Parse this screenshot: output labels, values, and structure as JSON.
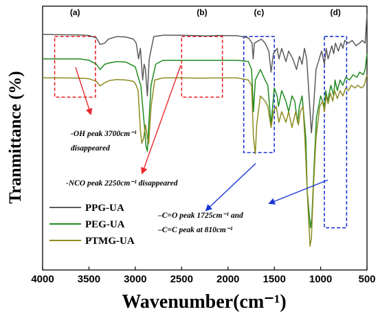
{
  "chart_data": {
    "type": "line",
    "title": "",
    "xlabel": "Wavenumber(cm⁻¹)",
    "ylabel": "Tranmittance (%)",
    "xlim": [
      4000,
      500
    ],
    "ylim": [
      0,
      1
    ],
    "xticks": [
      "4000",
      "3500",
      "3000",
      "2500",
      "2000",
      "1500",
      "1000",
      "500"
    ],
    "legend_position": "lower-left",
    "grid": false,
    "colors": {
      "PPG-UA": "#5a5a5a",
      "PEG-UA": "#1f8a1f",
      "PTMG-UA": "#8c8a1f",
      "box_red": "#e8262b",
      "box_blue": "#1a35d6",
      "arrow_red": "#e8262b",
      "arrow_blue": "#1a35d6"
    },
    "series": [
      {
        "name": "PPG-UA",
        "color": "#5a5a5a",
        "points": [
          [
            4000,
            0.893
          ],
          [
            3800,
            0.892
          ],
          [
            3600,
            0.891
          ],
          [
            3500,
            0.889
          ],
          [
            3420,
            0.88
          ],
          [
            3380,
            0.855
          ],
          [
            3330,
            0.86
          ],
          [
            3290,
            0.875
          ],
          [
            3200,
            0.885
          ],
          [
            3100,
            0.883
          ],
          [
            3020,
            0.875
          ],
          [
            2990,
            0.86
          ],
          [
            2965,
            0.8
          ],
          [
            2945,
            0.84
          ],
          [
            2920,
            0.72
          ],
          [
            2905,
            0.78
          ],
          [
            2890,
            0.76
          ],
          [
            2870,
            0.66
          ],
          [
            2850,
            0.8
          ],
          [
            2800,
            0.885
          ],
          [
            2700,
            0.89
          ],
          [
            2500,
            0.89
          ],
          [
            2300,
            0.888
          ],
          [
            2250,
            0.887
          ],
          [
            2100,
            0.889
          ],
          [
            1900,
            0.888
          ],
          [
            1780,
            0.88
          ],
          [
            1740,
            0.86
          ],
          [
            1728,
            0.8
          ],
          [
            1715,
            0.86
          ],
          [
            1640,
            0.875
          ],
          [
            1600,
            0.86
          ],
          [
            1560,
            0.83
          ],
          [
            1535,
            0.75
          ],
          [
            1510,
            0.82
          ],
          [
            1470,
            0.84
          ],
          [
            1450,
            0.8
          ],
          [
            1420,
            0.84
          ],
          [
            1375,
            0.79
          ],
          [
            1345,
            0.83
          ],
          [
            1300,
            0.8
          ],
          [
            1260,
            0.76
          ],
          [
            1230,
            0.81
          ],
          [
            1200,
            0.78
          ],
          [
            1175,
            0.84
          ],
          [
            1150,
            0.8
          ],
          [
            1100,
            0.52
          ],
          [
            1080,
            0.6
          ],
          [
            1050,
            0.76
          ],
          [
            1015,
            0.8
          ],
          [
            990,
            0.83
          ],
          [
            960,
            0.78
          ],
          [
            940,
            0.84
          ],
          [
            920,
            0.8
          ],
          [
            880,
            0.85
          ],
          [
            860,
            0.82
          ],
          [
            840,
            0.86
          ],
          [
            810,
            0.83
          ],
          [
            780,
            0.86
          ],
          [
            760,
            0.84
          ],
          [
            740,
            0.87
          ],
          [
            700,
            0.86
          ],
          [
            660,
            0.87
          ],
          [
            620,
            0.85
          ],
          [
            580,
            0.86
          ],
          [
            550,
            0.87
          ],
          [
            520,
            0.86
          ],
          [
            500,
            0.97
          ]
        ]
      },
      {
        "name": "PEG-UA",
        "color": "#1f8a1f",
        "points": [
          [
            4000,
            0.8
          ],
          [
            3800,
            0.8
          ],
          [
            3600,
            0.8
          ],
          [
            3500,
            0.795
          ],
          [
            3420,
            0.78
          ],
          [
            3380,
            0.76
          ],
          [
            3330,
            0.78
          ],
          [
            3280,
            0.785
          ],
          [
            3200,
            0.79
          ],
          [
            3100,
            0.788
          ],
          [
            3000,
            0.77
          ],
          [
            2960,
            0.72
          ],
          [
            2940,
            0.7
          ],
          [
            2920,
            0.62
          ],
          [
            2900,
            0.54
          ],
          [
            2885,
            0.47
          ],
          [
            2870,
            0.45
          ],
          [
            2855,
            0.55
          ],
          [
            2830,
            0.7
          ],
          [
            2780,
            0.78
          ],
          [
            2700,
            0.795
          ],
          [
            2500,
            0.795
          ],
          [
            2300,
            0.795
          ],
          [
            2100,
            0.795
          ],
          [
            1900,
            0.795
          ],
          [
            1780,
            0.79
          ],
          [
            1745,
            0.76
          ],
          [
            1725,
            0.6
          ],
          [
            1705,
            0.72
          ],
          [
            1650,
            0.76
          ],
          [
            1600,
            0.72
          ],
          [
            1570,
            0.7
          ],
          [
            1535,
            0.55
          ],
          [
            1500,
            0.69
          ],
          [
            1470,
            0.66
          ],
          [
            1455,
            0.62
          ],
          [
            1420,
            0.68
          ],
          [
            1375,
            0.64
          ],
          [
            1345,
            0.6
          ],
          [
            1310,
            0.66
          ],
          [
            1280,
            0.64
          ],
          [
            1250,
            0.56
          ],
          [
            1230,
            0.62
          ],
          [
            1200,
            0.66
          ],
          [
            1160,
            0.5
          ],
          [
            1145,
            0.3
          ],
          [
            1110,
            0.16
          ],
          [
            1095,
            0.2
          ],
          [
            1070,
            0.4
          ],
          [
            1045,
            0.58
          ],
          [
            1000,
            0.66
          ],
          [
            960,
            0.62
          ],
          [
            945,
            0.68
          ],
          [
            925,
            0.64
          ],
          [
            890,
            0.7
          ],
          [
            860,
            0.66
          ],
          [
            845,
            0.72
          ],
          [
            820,
            0.68
          ],
          [
            790,
            0.72
          ],
          [
            760,
            0.7
          ],
          [
            730,
            0.73
          ],
          [
            690,
            0.72
          ],
          [
            650,
            0.74
          ],
          [
            610,
            0.73
          ],
          [
            580,
            0.75
          ],
          [
            540,
            0.74
          ],
          [
            520,
            0.76
          ],
          [
            500,
            0.82
          ]
        ]
      },
      {
        "name": "PTMG-UA",
        "color": "#8c8a1f",
        "points": [
          [
            4000,
            0.728
          ],
          [
            3800,
            0.728
          ],
          [
            3600,
            0.727
          ],
          [
            3500,
            0.725
          ],
          [
            3420,
            0.715
          ],
          [
            3380,
            0.698
          ],
          [
            3330,
            0.71
          ],
          [
            3280,
            0.718
          ],
          [
            3200,
            0.722
          ],
          [
            3100,
            0.72
          ],
          [
            3020,
            0.715
          ],
          [
            2990,
            0.7
          ],
          [
            2970,
            0.68
          ],
          [
            2945,
            0.53
          ],
          [
            2930,
            0.48
          ],
          [
            2910,
            0.5
          ],
          [
            2890,
            0.55
          ],
          [
            2870,
            0.5
          ],
          [
            2855,
            0.48
          ],
          [
            2830,
            0.62
          ],
          [
            2790,
            0.72
          ],
          [
            2700,
            0.728
          ],
          [
            2500,
            0.728
          ],
          [
            2300,
            0.727
          ],
          [
            2100,
            0.728
          ],
          [
            1900,
            0.728
          ],
          [
            1780,
            0.72
          ],
          [
            1745,
            0.7
          ],
          [
            1725,
            0.5
          ],
          [
            1705,
            0.44
          ],
          [
            1690,
            0.55
          ],
          [
            1650,
            0.66
          ],
          [
            1600,
            0.64
          ],
          [
            1570,
            0.62
          ],
          [
            1535,
            0.54
          ],
          [
            1510,
            0.6
          ],
          [
            1480,
            0.62
          ],
          [
            1450,
            0.56
          ],
          [
            1420,
            0.6
          ],
          [
            1375,
            0.56
          ],
          [
            1345,
            0.6
          ],
          [
            1310,
            0.54
          ],
          [
            1270,
            0.6
          ],
          [
            1240,
            0.55
          ],
          [
            1220,
            0.6
          ],
          [
            1190,
            0.62
          ],
          [
            1170,
            0.5
          ],
          [
            1140,
            0.26
          ],
          [
            1115,
            0.09
          ],
          [
            1100,
            0.12
          ],
          [
            1080,
            0.3
          ],
          [
            1050,
            0.5
          ],
          [
            1010,
            0.62
          ],
          [
            980,
            0.64
          ],
          [
            960,
            0.6
          ],
          [
            940,
            0.66
          ],
          [
            920,
            0.63
          ],
          [
            895,
            0.67
          ],
          [
            870,
            0.64
          ],
          [
            850,
            0.68
          ],
          [
            820,
            0.65
          ],
          [
            790,
            0.68
          ],
          [
            760,
            0.66
          ],
          [
            730,
            0.69
          ],
          [
            700,
            0.68
          ],
          [
            670,
            0.7
          ],
          [
            630,
            0.69
          ],
          [
            600,
            0.7
          ],
          [
            560,
            0.69
          ],
          [
            530,
            0.7
          ],
          [
            500,
            0.74
          ]
        ]
      }
    ],
    "regions": [
      {
        "label": "(a)",
        "x_from": 3870,
        "x_to": 3430,
        "y_from": 0.885,
        "y_to": 0.655,
        "color": "#e8262b"
      },
      {
        "label": "(b)",
        "x_from": 2500,
        "x_to": 2060,
        "y_from": 0.885,
        "y_to": 0.655,
        "color": "#e8262b"
      },
      {
        "label": "(c)",
        "x_from": 1830,
        "x_to": 1500,
        "y_from": 0.885,
        "y_to": 0.445,
        "color": "#1a35d6"
      },
      {
        "label": "(d)",
        "x_from": 960,
        "x_to": 720,
        "y_from": 0.885,
        "y_to": 0.16,
        "color": "#1a35d6"
      }
    ],
    "annotations": [
      {
        "line1": "-OH peak 3700cm⁻¹",
        "line2": "disappeared"
      },
      {
        "line1": "-NCO peak 2250cm⁻¹  disappeared",
        "line2": ""
      },
      {
        "line1": "–C=O peak  1725cm⁻¹ and",
        "line2": "–C=C peak at 810cm⁻¹"
      }
    ]
  }
}
